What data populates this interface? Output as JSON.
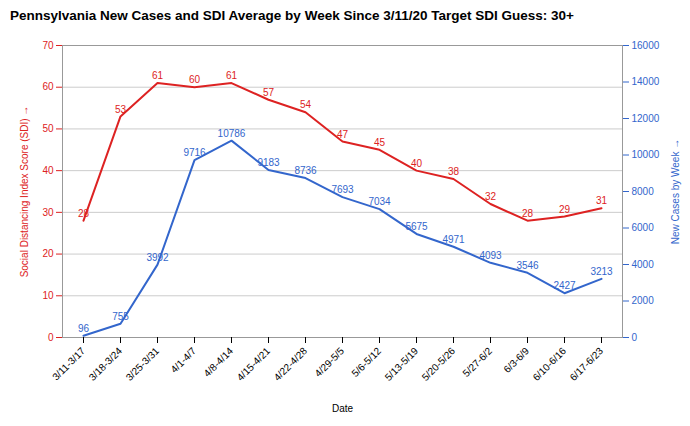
{
  "chart_data": {
    "type": "line",
    "title": "Pennsylvania New Cases and SDI Average by Week Since 3/11/20 Target SDI Guess: 30+",
    "xlabel": "Date",
    "ylabel": "Social Distancing Index Score (SDI)",
    "y2label": "New Cases by Week",
    "categories": [
      "3/11-3/17",
      "3/18-3/24",
      "3/25-3/31",
      "4/1-4/7",
      "4/8-4/14",
      "4/15-4/21",
      "4/22-4/28",
      "4/29-5/5",
      "5/6-5/12",
      "5/13-5/19",
      "5/20-5/26",
      "5/27-6/2",
      "6/3-6/9",
      "6/10-6/16",
      "6/17-6/23"
    ],
    "series": [
      {
        "name": "Social Distancing Index Score (SDI)",
        "color": "#dd2222",
        "values": [
          28,
          53,
          61,
          60,
          61,
          57,
          54,
          47,
          45,
          40,
          38,
          32,
          28,
          29,
          31
        ]
      },
      {
        "name": "New Cases by Week",
        "color": "#3366cc",
        "axis": "y2",
        "values": [
          96,
          755,
          3992,
          9716,
          10786,
          9183,
          8736,
          7693,
          7034,
          5675,
          4971,
          4093,
          3546,
          2427,
          3213
        ]
      }
    ],
    "ylim": [
      0,
      70
    ],
    "yticks": [
      0,
      10,
      20,
      30,
      40,
      50,
      60,
      70
    ],
    "y2lim": [
      0,
      16000
    ],
    "y2ticks": [
      0,
      2000,
      4000,
      6000,
      8000,
      10000,
      12000,
      14000,
      16000
    ],
    "grid": true,
    "data_labels": true
  }
}
